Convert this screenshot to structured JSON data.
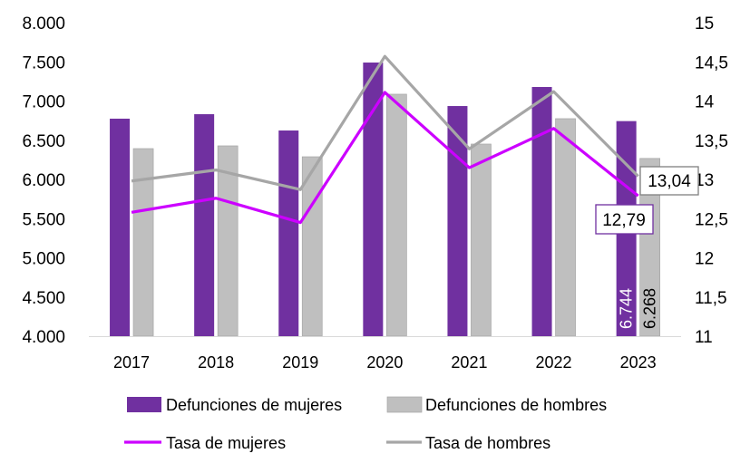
{
  "chart_data": {
    "type": "bar",
    "title": "",
    "categories": [
      "2017",
      "2018",
      "2019",
      "2020",
      "2021",
      "2022",
      "2023"
    ],
    "y_left": {
      "ylim": [
        4000,
        8000
      ],
      "ticks": [
        4000,
        4500,
        5000,
        5500,
        6000,
        6500,
        7000,
        7500,
        8000
      ],
      "tick_labels": [
        "4.000",
        "4.500",
        "5.000",
        "5.500",
        "6.000",
        "6.500",
        "7.000",
        "7.500",
        "8.000"
      ]
    },
    "y_right": {
      "ylim": [
        11,
        15
      ],
      "ticks": [
        11,
        11.5,
        12,
        12.5,
        13,
        13.5,
        14,
        14.5,
        15
      ],
      "tick_labels": [
        "11",
        "11,5",
        "12",
        "12,5",
        "13",
        "13,5",
        "14",
        "14,5",
        "15"
      ]
    },
    "grid": false,
    "legend_position": "bottom",
    "series": [
      {
        "name": "Defunciones de mujeres",
        "kind": "bar",
        "axis": "left",
        "color": "#7030A0",
        "values": [
          6775,
          6832,
          6624,
          7491,
          6936,
          7179,
          6744
        ]
      },
      {
        "name": "Defunciones de hombres",
        "kind": "bar",
        "axis": "left",
        "color": "#BFBFBF",
        "values": [
          6393,
          6428,
          6289,
          7087,
          6451,
          6775,
          6268
        ]
      },
      {
        "name": "Tasa de mujeres",
        "kind": "line",
        "axis": "right",
        "color": "#CC00FF",
        "values": [
          12.58,
          12.76,
          12.45,
          14.11,
          13.15,
          13.65,
          12.79
        ]
      },
      {
        "name": "Tasa de hombres",
        "kind": "line",
        "axis": "right",
        "color": "#A6A6A6",
        "values": [
          12.98,
          13.12,
          12.87,
          14.57,
          13.39,
          14.12,
          13.04
        ]
      }
    ],
    "data_labels": {
      "mujeres_2023": "6.744",
      "hombres_2023": "6.268",
      "tasa_mujeres_2023": "12,79",
      "tasa_hombres_2023": "13,04"
    }
  }
}
